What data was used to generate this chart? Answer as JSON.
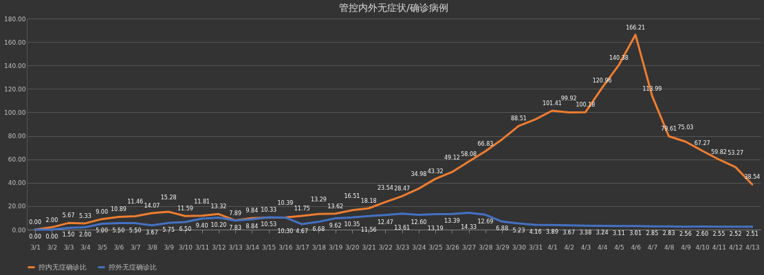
{
  "chart_data": {
    "type": "line",
    "title": "管控内外无症状/确诊病例",
    "categories": [
      "3/1",
      "3/2",
      "3/3",
      "3/4",
      "3/5",
      "3/6",
      "3/7",
      "3/8",
      "3/9",
      "3/10",
      "3/11",
      "3/12",
      "3/13",
      "3/14",
      "3/15",
      "3/16",
      "3/17",
      "3/18",
      "3/19",
      "3/20",
      "3/21",
      "3/22",
      "3/23",
      "3/24",
      "3/25",
      "3/26",
      "3/27",
      "3/28",
      "3/29",
      "3/30",
      "3/31",
      "4/1",
      "4/2",
      "4/3",
      "4/4",
      "4/5",
      "4/6",
      "4/7",
      "4/8",
      "4/9",
      "4/10",
      "4/11",
      "4/12",
      "4/13"
    ],
    "series": [
      {
        "name": "控内无症确诊比",
        "color": "#ed7d31",
        "values": [
          0.0,
          2.0,
          5.67,
          5.33,
          9.0,
          10.89,
          11.46,
          14.07,
          15.28,
          11.59,
          11.81,
          13.32,
          7.89,
          9.84,
          10.33,
          10.39,
          11.75,
          13.29,
          13.62,
          16.51,
          18.18,
          23.54,
          28.47,
          34.98,
          43.32,
          49.12,
          58.08,
          66.83,
          77,
          88.51,
          94,
          101.41,
          99.92,
          100.18,
          120.96,
          140.38,
          166.21,
          113.99,
          79.61,
          75.03,
          67.27,
          59.82,
          53.27,
          38.54
        ],
        "value_labels": [
          "0.00",
          "2.00",
          "5.67",
          "5.33",
          "9.00",
          "10.89",
          "11.46",
          "14.07",
          "15.28",
          "11.59",
          "11.81",
          "13.32",
          "7.89",
          "9.84",
          "10.33",
          "10.39",
          "11.75",
          "13.29",
          "13.62",
          "16.51",
          "18.18",
          "23.54",
          "28.47",
          "34.98",
          "43.32",
          "49.12",
          "58.08",
          "66.83",
          null,
          "88.51",
          null,
          "101.41",
          "99.92",
          "100.18",
          "120.96",
          "140.38",
          "166.21",
          "113.99",
          "79.61",
          "75.03",
          "67.27",
          "59.82",
          "53.27",
          "38.54"
        ]
      },
      {
        "name": "控外无症确诊比",
        "color": "#4472c4",
        "values": [
          0.0,
          0.0,
          1.5,
          2.0,
          5.0,
          5.5,
          5.5,
          3.67,
          5.75,
          6.5,
          9.4,
          10.2,
          7.83,
          8.84,
          10.53,
          10.3,
          4.67,
          6.68,
          9.62,
          10.35,
          11.56,
          12.47,
          13.61,
          12.6,
          13.19,
          13.39,
          14.33,
          12.69,
          6.88,
          5.23,
          4.16,
          3.89,
          3.67,
          3.38,
          3.24,
          3.11,
          3.01,
          2.85,
          2.83,
          2.56,
          2.6,
          2.55,
          2.52,
          2.51
        ],
        "value_labels": [
          "0.00",
          "0.00",
          "1.50",
          "2.00",
          "5.00",
          "5.50",
          "5.50",
          "3.67",
          "5.75",
          "6.50",
          "9.40",
          "10.20",
          "7.83",
          "8.84",
          "10.53",
          "10.30",
          "4.67",
          "6.68",
          "9.62",
          "10.35",
          "11.56",
          "12.47",
          "13.61",
          "12.60",
          "13.19",
          "13.39",
          "14.33",
          "12.69",
          "6.88",
          "5.23",
          "4.16",
          "3.89",
          "3.67",
          "3.38",
          "3.24",
          "3.11",
          "3.01",
          "2.85",
          "2.83",
          "2.56",
          "2.60",
          "2.55",
          "2.52",
          "2.51"
        ]
      }
    ],
    "ylim": [
      0,
      180
    ],
    "yticks": [
      {
        "value": 0,
        "label": "0.00"
      },
      {
        "value": 20,
        "label": "20.00"
      },
      {
        "value": 40,
        "label": "40.00"
      },
      {
        "value": 60,
        "label": "60.00"
      },
      {
        "value": 80,
        "label": "80.00"
      },
      {
        "value": 100,
        "label": "100.00"
      },
      {
        "value": 120,
        "label": "120.00"
      },
      {
        "value": 140,
        "label": "140.00"
      },
      {
        "value": 160,
        "label": "160.00"
      },
      {
        "value": 180,
        "label": "180.00"
      }
    ],
    "grid": "y",
    "legend": "bottom",
    "marker": "none",
    "line_style": "solid"
  }
}
